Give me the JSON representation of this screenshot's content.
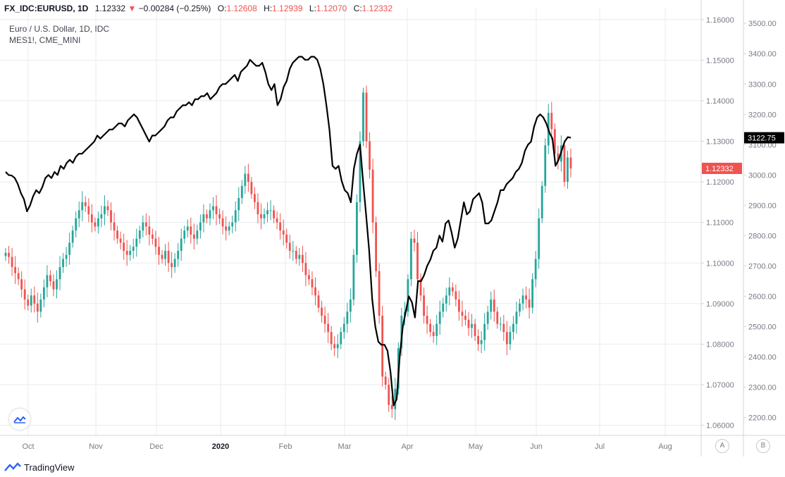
{
  "header": {
    "symbol": "FX_IDC:EURUSD, 1D",
    "last": "1.12332",
    "change": "−0.00284 (−0.25%)",
    "o_label": "O:",
    "o_value": "1.12608",
    "h_label": "H:",
    "h_value": "1.12939",
    "l_label": "L:",
    "l_value": "1.12070",
    "c_label": "C:",
    "c_value": "1.12332"
  },
  "legend": {
    "line1": "Euro / U.S. Dollar, 1D, IDC",
    "line2": "MES1!, CME_MINI"
  },
  "footer": {
    "brand": "TradingView"
  },
  "scale_buttons": {
    "a": "A",
    "b": "B"
  },
  "colors": {
    "up": "#26a69a",
    "down": "#ef5350",
    "overlay_line": "#000000",
    "grid": "#e8ebf0",
    "axis_text": "#787b86",
    "border": "#d1d4dc",
    "eur_badge": "#ef5350",
    "mes_badge": "#000000"
  },
  "chart_data": {
    "type": "line",
    "x_ticks": [
      "Oct",
      "Nov",
      "Dec",
      "2020",
      "Feb",
      "Mar",
      "Apr",
      "May",
      "Jun",
      "Jul",
      "Aug"
    ],
    "eurusd_axis": {
      "ticks": [
        1.06,
        1.07,
        1.08,
        1.09,
        1.1,
        1.11,
        1.12,
        1.13,
        1.14,
        1.15,
        1.16
      ],
      "tick_labels": [
        "1.06000",
        "1.07000",
        "1.08000",
        "1.09000",
        "1.10000",
        "1.11000",
        "1.12000",
        "1.13000",
        "1.14000",
        "1.15000",
        "1.16000"
      ],
      "ylim": [
        1.0575,
        1.161
      ],
      "last_value": 1.12332,
      "last_label": "1.12332"
    },
    "mes_axis": {
      "ticks": [
        2200,
        2300,
        2400,
        2500,
        2600,
        2700,
        2800,
        2900,
        3000,
        3100,
        3200,
        3300,
        3400,
        3500
      ],
      "tick_labels": [
        "2200.00",
        "2300.00",
        "2400.00",
        "2500.00",
        "2600.00",
        "2700.00",
        "2800.00",
        "2900.00",
        "3000.00",
        "3100.00",
        "3200.00",
        "3300.00",
        "3400.00",
        "3500.00"
      ],
      "ylim": [
        2141,
        3526
      ],
      "last_value": 3122.75,
      "last_label": "3122.75"
    },
    "series": [
      {
        "type": "candlestick",
        "axis": "left",
        "closes": [
          1.1025,
          1.1015,
          1.099,
          1.0975,
          1.096,
          1.0935,
          1.091,
          1.0895,
          1.092,
          1.09,
          1.088,
          1.091,
          1.094,
          1.097,
          1.0955,
          1.0935,
          1.096,
          1.099,
          1.101,
          1.102,
          1.105,
          1.108,
          1.111,
          1.113,
          1.115,
          1.114,
          1.112,
          1.11,
          1.109,
          1.111,
          1.112,
          1.114,
          1.113,
          1.11,
          1.108,
          1.106,
          1.105,
          1.103,
          1.102,
          1.103,
          1.104,
          1.106,
          1.108,
          1.11,
          1.109,
          1.107,
          1.106,
          1.104,
          1.102,
          1.101,
          1.103,
          1.1,
          1.099,
          1.101,
          1.103,
          1.106,
          1.108,
          1.109,
          1.107,
          1.106,
          1.108,
          1.11,
          1.112,
          1.111,
          1.113,
          1.114,
          1.112,
          1.111,
          1.109,
          1.108,
          1.109,
          1.11,
          1.113,
          1.116,
          1.119,
          1.122,
          1.12,
          1.117,
          1.115,
          1.112,
          1.111,
          1.112,
          1.113,
          1.113,
          1.111,
          1.11,
          1.108,
          1.107,
          1.105,
          1.103,
          1.103,
          1.101,
          1.102,
          1.1,
          1.097,
          1.096,
          1.094,
          1.092,
          1.089,
          1.087,
          1.085,
          1.083,
          1.08,
          1.079,
          1.08,
          1.083,
          1.085,
          1.088,
          1.091,
          1.102,
          1.115,
          1.13,
          1.142,
          1.13,
          1.123,
          1.11,
          1.098,
          1.087,
          1.072,
          1.07,
          1.065,
          1.064,
          1.069,
          1.079,
          1.087,
          1.088,
          1.096,
          1.106,
          1.105,
          1.096,
          1.092,
          1.087,
          1.085,
          1.083,
          1.082,
          1.085,
          1.088,
          1.09,
          1.092,
          1.094,
          1.093,
          1.091,
          1.088,
          1.087,
          1.086,
          1.084,
          1.085,
          1.082,
          1.08,
          1.081,
          1.085,
          1.088,
          1.091,
          1.088,
          1.085,
          1.085,
          1.083,
          1.08,
          1.083,
          1.085,
          1.088,
          1.09,
          1.092,
          1.091,
          1.089,
          1.096,
          1.101,
          1.111,
          1.119,
          1.129,
          1.137,
          1.133,
          1.127,
          1.125,
          1.129,
          1.12,
          1.126,
          1.1233
        ]
      },
      {
        "type": "line",
        "axis": "right",
        "values": [
          3010,
          3000,
          2998,
          2990,
          2970,
          2940,
          2920,
          2880,
          2900,
          2930,
          2950,
          2940,
          2960,
          2990,
          3000,
          2990,
          3010,
          3000,
          3030,
          3020,
          3040,
          3050,
          3040,
          3060,
          3070,
          3070,
          3080,
          3090,
          3100,
          3110,
          3130,
          3120,
          3130,
          3140,
          3150,
          3150,
          3160,
          3170,
          3170,
          3160,
          3180,
          3190,
          3200,
          3190,
          3170,
          3150,
          3130,
          3110,
          3130,
          3130,
          3140,
          3150,
          3160,
          3180,
          3190,
          3190,
          3210,
          3220,
          3230,
          3230,
          3240,
          3230,
          3250,
          3250,
          3260,
          3260,
          3270,
          3250,
          3260,
          3270,
          3290,
          3300,
          3300,
          3310,
          3320,
          3330,
          3310,
          3340,
          3350,
          3360,
          3380,
          3370,
          3360,
          3360,
          3370,
          3340,
          3300,
          3280,
          3300,
          3230,
          3250,
          3290,
          3310,
          3350,
          3370,
          3380,
          3390,
          3390,
          3380,
          3380,
          3390,
          3390,
          3380,
          3350,
          3300,
          3230,
          3150,
          3030,
          3020,
          3030,
          2980,
          2950,
          2940,
          2910,
          3020,
          3070,
          3100,
          2980,
          2870,
          2750,
          2590,
          2500,
          2450,
          2440,
          2440,
          2420,
          2350,
          2240,
          2260,
          2400,
          2500,
          2550,
          2600,
          2580,
          2530,
          2650,
          2650,
          2670,
          2700,
          2720,
          2750,
          2760,
          2800,
          2780,
          2840,
          2850,
          2810,
          2760,
          2790,
          2850,
          2910,
          2870,
          2880,
          2920,
          2930,
          2940,
          2910,
          2840,
          2840,
          2850,
          2880,
          2910,
          2950,
          2950,
          2970,
          2980,
          2990,
          3010,
          3020,
          3040,
          3080,
          3100,
          3110,
          3160,
          3190,
          3200,
          3190,
          3170,
          3140,
          3120,
          3030,
          3050,
          3080,
          3110,
          3125,
          3122.75
        ]
      }
    ]
  }
}
